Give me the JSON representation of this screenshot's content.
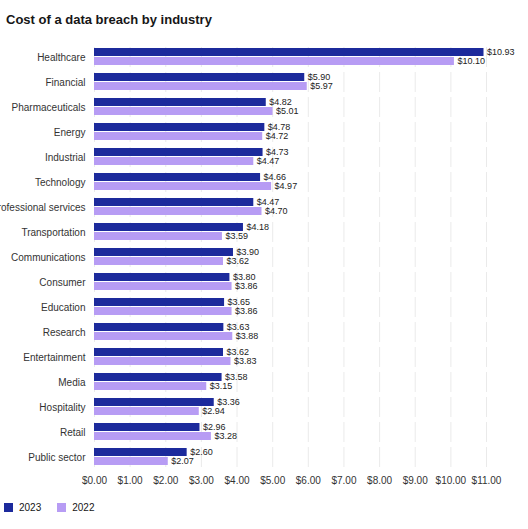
{
  "chart_data": {
    "type": "bar",
    "title": "Cost of a data breach by industry",
    "orientation": "horizontal",
    "categories": [
      "Healthcare",
      "Financial",
      "Pharmaceuticals",
      "Energy",
      "Industrial",
      "Technology",
      "Professional services",
      "Transportation",
      "Communications",
      "Consumer",
      "Education",
      "Research",
      "Entertainment",
      "Media",
      "Hospitality",
      "Retail",
      "Public sector"
    ],
    "series": [
      {
        "name": "2023",
        "color": "#1c2a9c",
        "values": [
          10.93,
          5.9,
          4.82,
          4.78,
          4.73,
          4.66,
          4.47,
          4.18,
          3.9,
          3.8,
          3.65,
          3.63,
          3.62,
          3.58,
          3.36,
          2.96,
          2.6
        ],
        "value_labels": [
          "$10.93",
          "$5.90",
          "$4.82",
          "$4.78",
          "$4.73",
          "$4.66",
          "$4.47",
          "$4.18",
          "$3.90",
          "$3.80",
          "$3.65",
          "$3.63",
          "$3.62",
          "$3.58",
          "$3.36",
          "$2.96",
          "$2.60"
        ]
      },
      {
        "name": "2022",
        "color": "#b79cf4",
        "values": [
          10.1,
          5.97,
          5.01,
          4.72,
          4.47,
          4.97,
          4.7,
          3.59,
          3.62,
          3.86,
          3.86,
          3.88,
          3.83,
          3.15,
          2.94,
          3.28,
          2.07
        ],
        "value_labels": [
          "$10.10",
          "$5.97",
          "$5.01",
          "$4.72",
          "$4.47",
          "$4.97",
          "$4.70",
          "$3.59",
          "$3.62",
          "$3.86",
          "$3.86",
          "$3.88",
          "$3.83",
          "$3.15",
          "$2.94",
          "$3.28",
          "$2.07"
        ]
      }
    ],
    "xlim": [
      0,
      11
    ],
    "xticks": [
      {
        "value": 0,
        "label": "$0.00"
      },
      {
        "value": 1,
        "label": "$1.00"
      },
      {
        "value": 2,
        "label": "$2.00"
      },
      {
        "value": 3,
        "label": "$3.00"
      },
      {
        "value": 4,
        "label": "$4.00"
      },
      {
        "value": 5,
        "label": "$5.00"
      },
      {
        "value": 6,
        "label": "$6.00"
      },
      {
        "value": 7,
        "label": "$7.00"
      },
      {
        "value": 8,
        "label": "$8.00"
      },
      {
        "value": 9,
        "label": "$9.00"
      },
      {
        "value": 10,
        "label": "$10.00"
      },
      {
        "value": 11,
        "label": "$11.00"
      }
    ],
    "grid": true,
    "data_labels": true,
    "legend": "bottom-left"
  }
}
